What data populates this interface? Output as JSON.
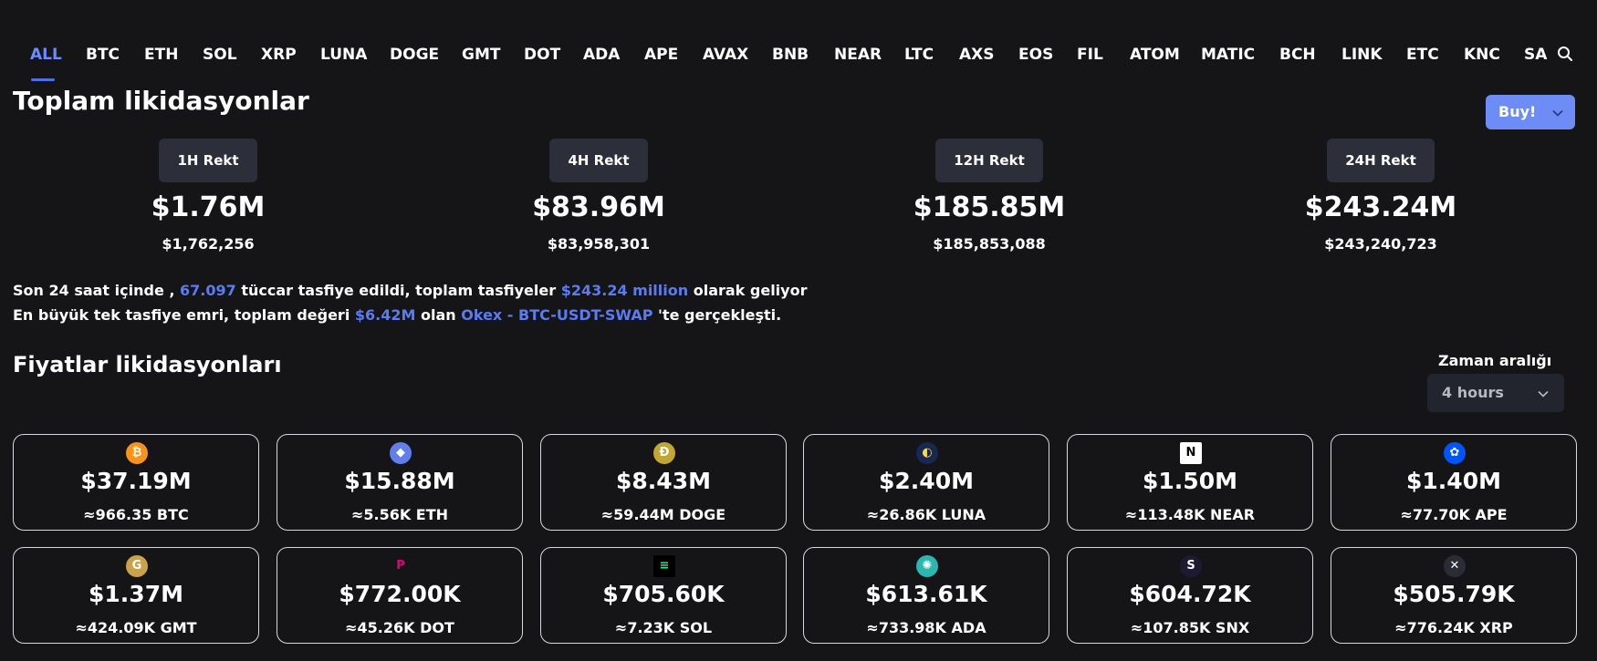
{
  "tabs": [
    "ALL",
    "BTC",
    "ETH",
    "SOL",
    "XRP",
    "LUNA",
    "DOGE",
    "GMT",
    "DOT",
    "ADA",
    "APE",
    "AVAX",
    "BNB",
    "NEAR",
    "LTC",
    "AXS",
    "EOS",
    "FIL",
    "ATOM",
    "MATIC",
    "BCH",
    "LINK",
    "ETC",
    "KNC",
    "SAND"
  ],
  "active_tab": "ALL",
  "title": "Toplam likidasyonlar",
  "buy_button": "Buy!",
  "stats": [
    {
      "label": "1H Rekt",
      "short": "$1.76M",
      "full": "$1,762,256"
    },
    {
      "label": "4H Rekt",
      "short": "$83.96M",
      "full": "$83,958,301"
    },
    {
      "label": "12H Rekt",
      "short": "$185.85M",
      "full": "$185,853,088"
    },
    {
      "label": "24H Rekt",
      "short": "$243.24M",
      "full": "$243,240,723"
    }
  ],
  "summary": {
    "line1_a": "Son 24 saat içinde ,",
    "traders": "67.097",
    "line1_b": "tüccar tasfiye edildi, toplam tasfiyeler",
    "total": "$243.24 million",
    "line1_c": "olarak geliyor",
    "line2_a": "En büyük tek tasfiye emri, toplam değeri",
    "largest": "$6.42M",
    "line2_b": "olan",
    "exchange": "Okex - BTC-USDT-SWAP",
    "line2_c": "'te gerçekleşti."
  },
  "section_title": "Fiyatlar likidasyonları",
  "range": {
    "label": "Zaman aralığı",
    "value": "4 hours"
  },
  "coins": [
    {
      "icon": "bitcoin-icon",
      "glyph": "₿",
      "color": "#f7931a",
      "amount": "$37.19M",
      "units": "≈966.35 BTC"
    },
    {
      "icon": "ethereum-icon",
      "glyph": "◆",
      "color": "#627eea",
      "amount": "$15.88M",
      "units": "≈5.56K ETH"
    },
    {
      "icon": "dogecoin-icon",
      "glyph": "Ð",
      "color": "#c2a633",
      "amount": "$8.43M",
      "units": "≈59.44M DOGE"
    },
    {
      "icon": "luna-icon",
      "glyph": "◐",
      "color": "#172852",
      "amount": "$2.40M",
      "units": "≈26.86K LUNA"
    },
    {
      "icon": "near-icon",
      "glyph": "N",
      "color": "#ffffff",
      "amount": "$1.50M",
      "units": "≈113.48K NEAR"
    },
    {
      "icon": "ape-icon",
      "glyph": "✿",
      "color": "#0054f9",
      "amount": "$1.40M",
      "units": "≈77.70K APE"
    },
    {
      "icon": "gmt-icon",
      "glyph": "G",
      "color": "#c9a24a",
      "amount": "$1.37M",
      "units": "≈424.09K GMT"
    },
    {
      "icon": "polkadot-icon",
      "glyph": "P",
      "color": "#151518",
      "amount": "$772.00K",
      "units": "≈45.26K DOT"
    },
    {
      "icon": "solana-icon",
      "glyph": "≡",
      "color": "#000000",
      "amount": "$705.60K",
      "units": "≈7.23K SOL"
    },
    {
      "icon": "cardano-icon",
      "glyph": "✺",
      "color": "#2ab7b0",
      "amount": "$613.61K",
      "units": "≈733.98K ADA"
    },
    {
      "icon": "synthetix-icon",
      "glyph": "S",
      "color": "#1e1a31",
      "amount": "$604.72K",
      "units": "≈107.85K SNX"
    },
    {
      "icon": "xrp-icon",
      "glyph": "✕",
      "color": "#2a2d35",
      "amount": "$505.79K",
      "units": "≈776.24K XRP"
    }
  ]
}
